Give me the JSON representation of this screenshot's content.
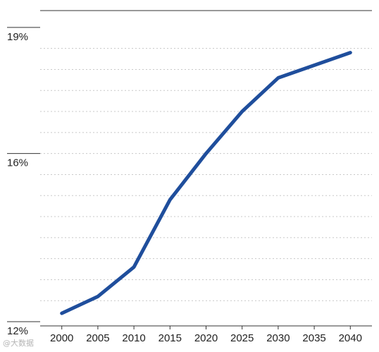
{
  "chart_data": {
    "type": "line",
    "title": "",
    "xlabel": "",
    "ylabel": "",
    "x": [
      2000,
      2005,
      2010,
      2015,
      2020,
      2025,
      2030,
      2035,
      2040
    ],
    "series": [
      {
        "values": [
          12.2,
          12.6,
          13.3,
          14.9,
          16.0,
          17.0,
          17.8,
          18.1,
          18.4
        ]
      }
    ],
    "xlim": [
      1997,
      2043
    ],
    "ylim": [
      11.9,
      19.4
    ],
    "ytick_values": [
      12,
      16,
      19
    ],
    "ytick_labels": [
      "12%",
      "16%",
      "19%"
    ],
    "xtick_labels": [
      "2000",
      "2005",
      "2010",
      "2015",
      "2020",
      "2025",
      "2030",
      "2035",
      "2040"
    ],
    "grid": true,
    "legend": "none",
    "colors": {
      "line": "#1f4e9c",
      "grid": "#c8c8c8",
      "axis": "#333333"
    }
  },
  "watermark": "@大数据"
}
